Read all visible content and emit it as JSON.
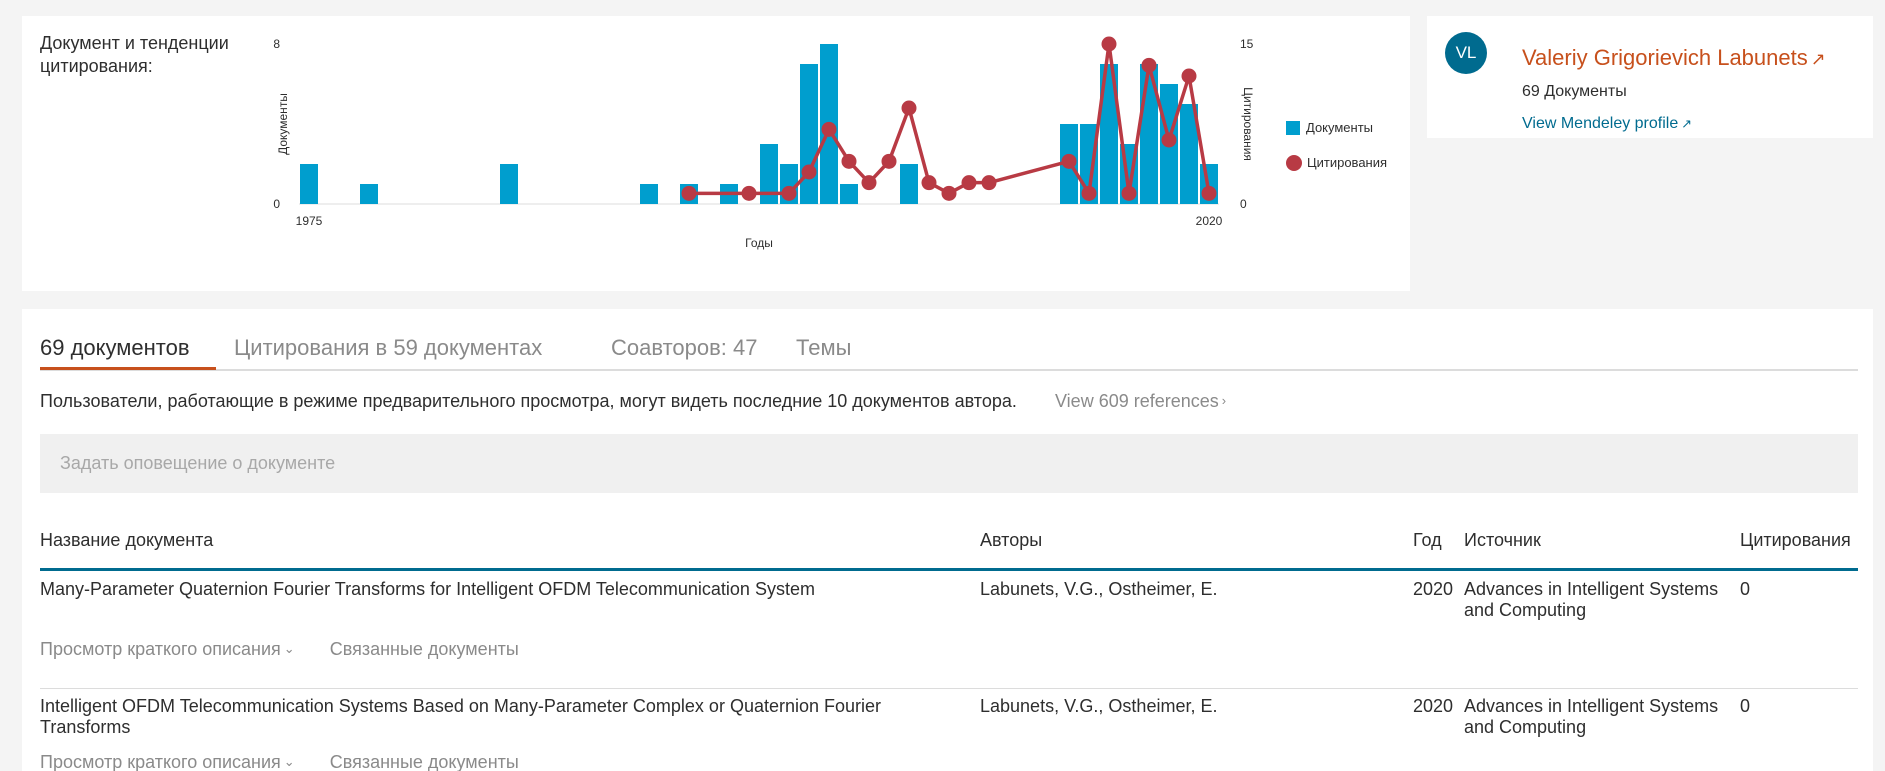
{
  "chart": {
    "heading": "Документ и тенденции цитирования:",
    "legend": {
      "documents": "Документы",
      "citations": "Цитирования"
    },
    "colors": {
      "bars": "#009ece",
      "line": "#b83a44"
    }
  },
  "chart_data": {
    "type": "bar",
    "xlabel": "Годы",
    "ylabel": "Документы",
    "y2label": "Цитирования",
    "x_ticks": [
      "1975",
      "2020"
    ],
    "ylim": [
      0,
      8
    ],
    "y2lim": [
      0,
      15
    ],
    "y_ticks": [
      "0",
      "8"
    ],
    "y2_ticks": [
      "0",
      "15"
    ],
    "bars": [
      {
        "year": 1975,
        "value": 2
      },
      {
        "year": 1978,
        "value": 1
      },
      {
        "year": 1985,
        "value": 2
      },
      {
        "year": 1992,
        "value": 1
      },
      {
        "year": 1994,
        "value": 1
      },
      {
        "year": 1996,
        "value": 1
      },
      {
        "year": 1998,
        "value": 3
      },
      {
        "year": 1999,
        "value": 2
      },
      {
        "year": 2000,
        "value": 7
      },
      {
        "year": 2001,
        "value": 8
      },
      {
        "year": 2002,
        "value": 1
      },
      {
        "year": 2005,
        "value": 2
      },
      {
        "year": 2013,
        "value": 4
      },
      {
        "year": 2014,
        "value": 4
      },
      {
        "year": 2015,
        "value": 7
      },
      {
        "year": 2016,
        "value": 3
      },
      {
        "year": 2017,
        "value": 7
      },
      {
        "year": 2018,
        "value": 6
      },
      {
        "year": 2019,
        "value": 5
      },
      {
        "year": 2020,
        "value": 2
      }
    ],
    "series": [
      {
        "name": "Цитирования",
        "points": [
          {
            "year": 1994,
            "value": 1
          },
          {
            "year": 1997,
            "value": 1
          },
          {
            "year": 1999,
            "value": 1
          },
          {
            "year": 2000,
            "value": 3
          },
          {
            "year": 2001,
            "value": 7
          },
          {
            "year": 2002,
            "value": 4
          },
          {
            "year": 2003,
            "value": 2
          },
          {
            "year": 2004,
            "value": 4
          },
          {
            "year": 2005,
            "value": 9
          },
          {
            "year": 2006,
            "value": 2
          },
          {
            "year": 2007,
            "value": 1
          },
          {
            "year": 2008,
            "value": 2
          },
          {
            "year": 2009,
            "value": 2
          },
          {
            "year": 2013,
            "value": 4
          },
          {
            "year": 2014,
            "value": 1
          },
          {
            "year": 2015,
            "value": 15
          },
          {
            "year": 2016,
            "value": 1
          },
          {
            "year": 2017,
            "value": 13
          },
          {
            "year": 2018,
            "value": 6
          },
          {
            "year": 2019,
            "value": 12
          },
          {
            "year": 2020,
            "value": 1
          }
        ]
      }
    ]
  },
  "profile": {
    "initials": "VL",
    "name": "Valeriy Grigorievich Labunets",
    "documents": "69 Документы",
    "mendeley_link": "View Mendeley profile"
  },
  "tabs": [
    {
      "label": "69 документов",
      "active": true
    },
    {
      "label": "Цитирования в 59 документах",
      "active": false
    },
    {
      "label": "Соавторов: 47",
      "active": false
    },
    {
      "label": "Темы",
      "active": false
    }
  ],
  "notice": {
    "text": "Пользователи, работающие в режиме предварительного просмотра, могут видеть последние 10 документов автора.",
    "view_refs": "View 609 references"
  },
  "alert": {
    "placeholder": "Задать оповещение о документе"
  },
  "table": {
    "headers": {
      "title": "Название документа",
      "authors": "Авторы",
      "year": "Год",
      "source": "Источник",
      "citations": "Цитирования"
    },
    "rows": [
      {
        "title": "Many-Parameter Quaternion Fourier Transforms for Intelligent OFDM Telecommunication System",
        "authors": "Labunets, V.G., Ostheimer, E.",
        "year": "2020",
        "source": "Advances in Intelligent Systems and Computing",
        "citations": "0",
        "abstract": "Просмотр краткого описания",
        "related": "Связанные документы"
      },
      {
        "title": "Intelligent OFDM Telecommunication Systems Based on Many-Parameter Complex or Quaternion Fourier Transforms",
        "authors": "Labunets, V.G., Ostheimer, E.",
        "year": "2020",
        "source": "Advances in Intelligent Systems and Computing",
        "citations": "0",
        "abstract": "Просмотр краткого описания",
        "related": "Связанные документы"
      }
    ]
  }
}
